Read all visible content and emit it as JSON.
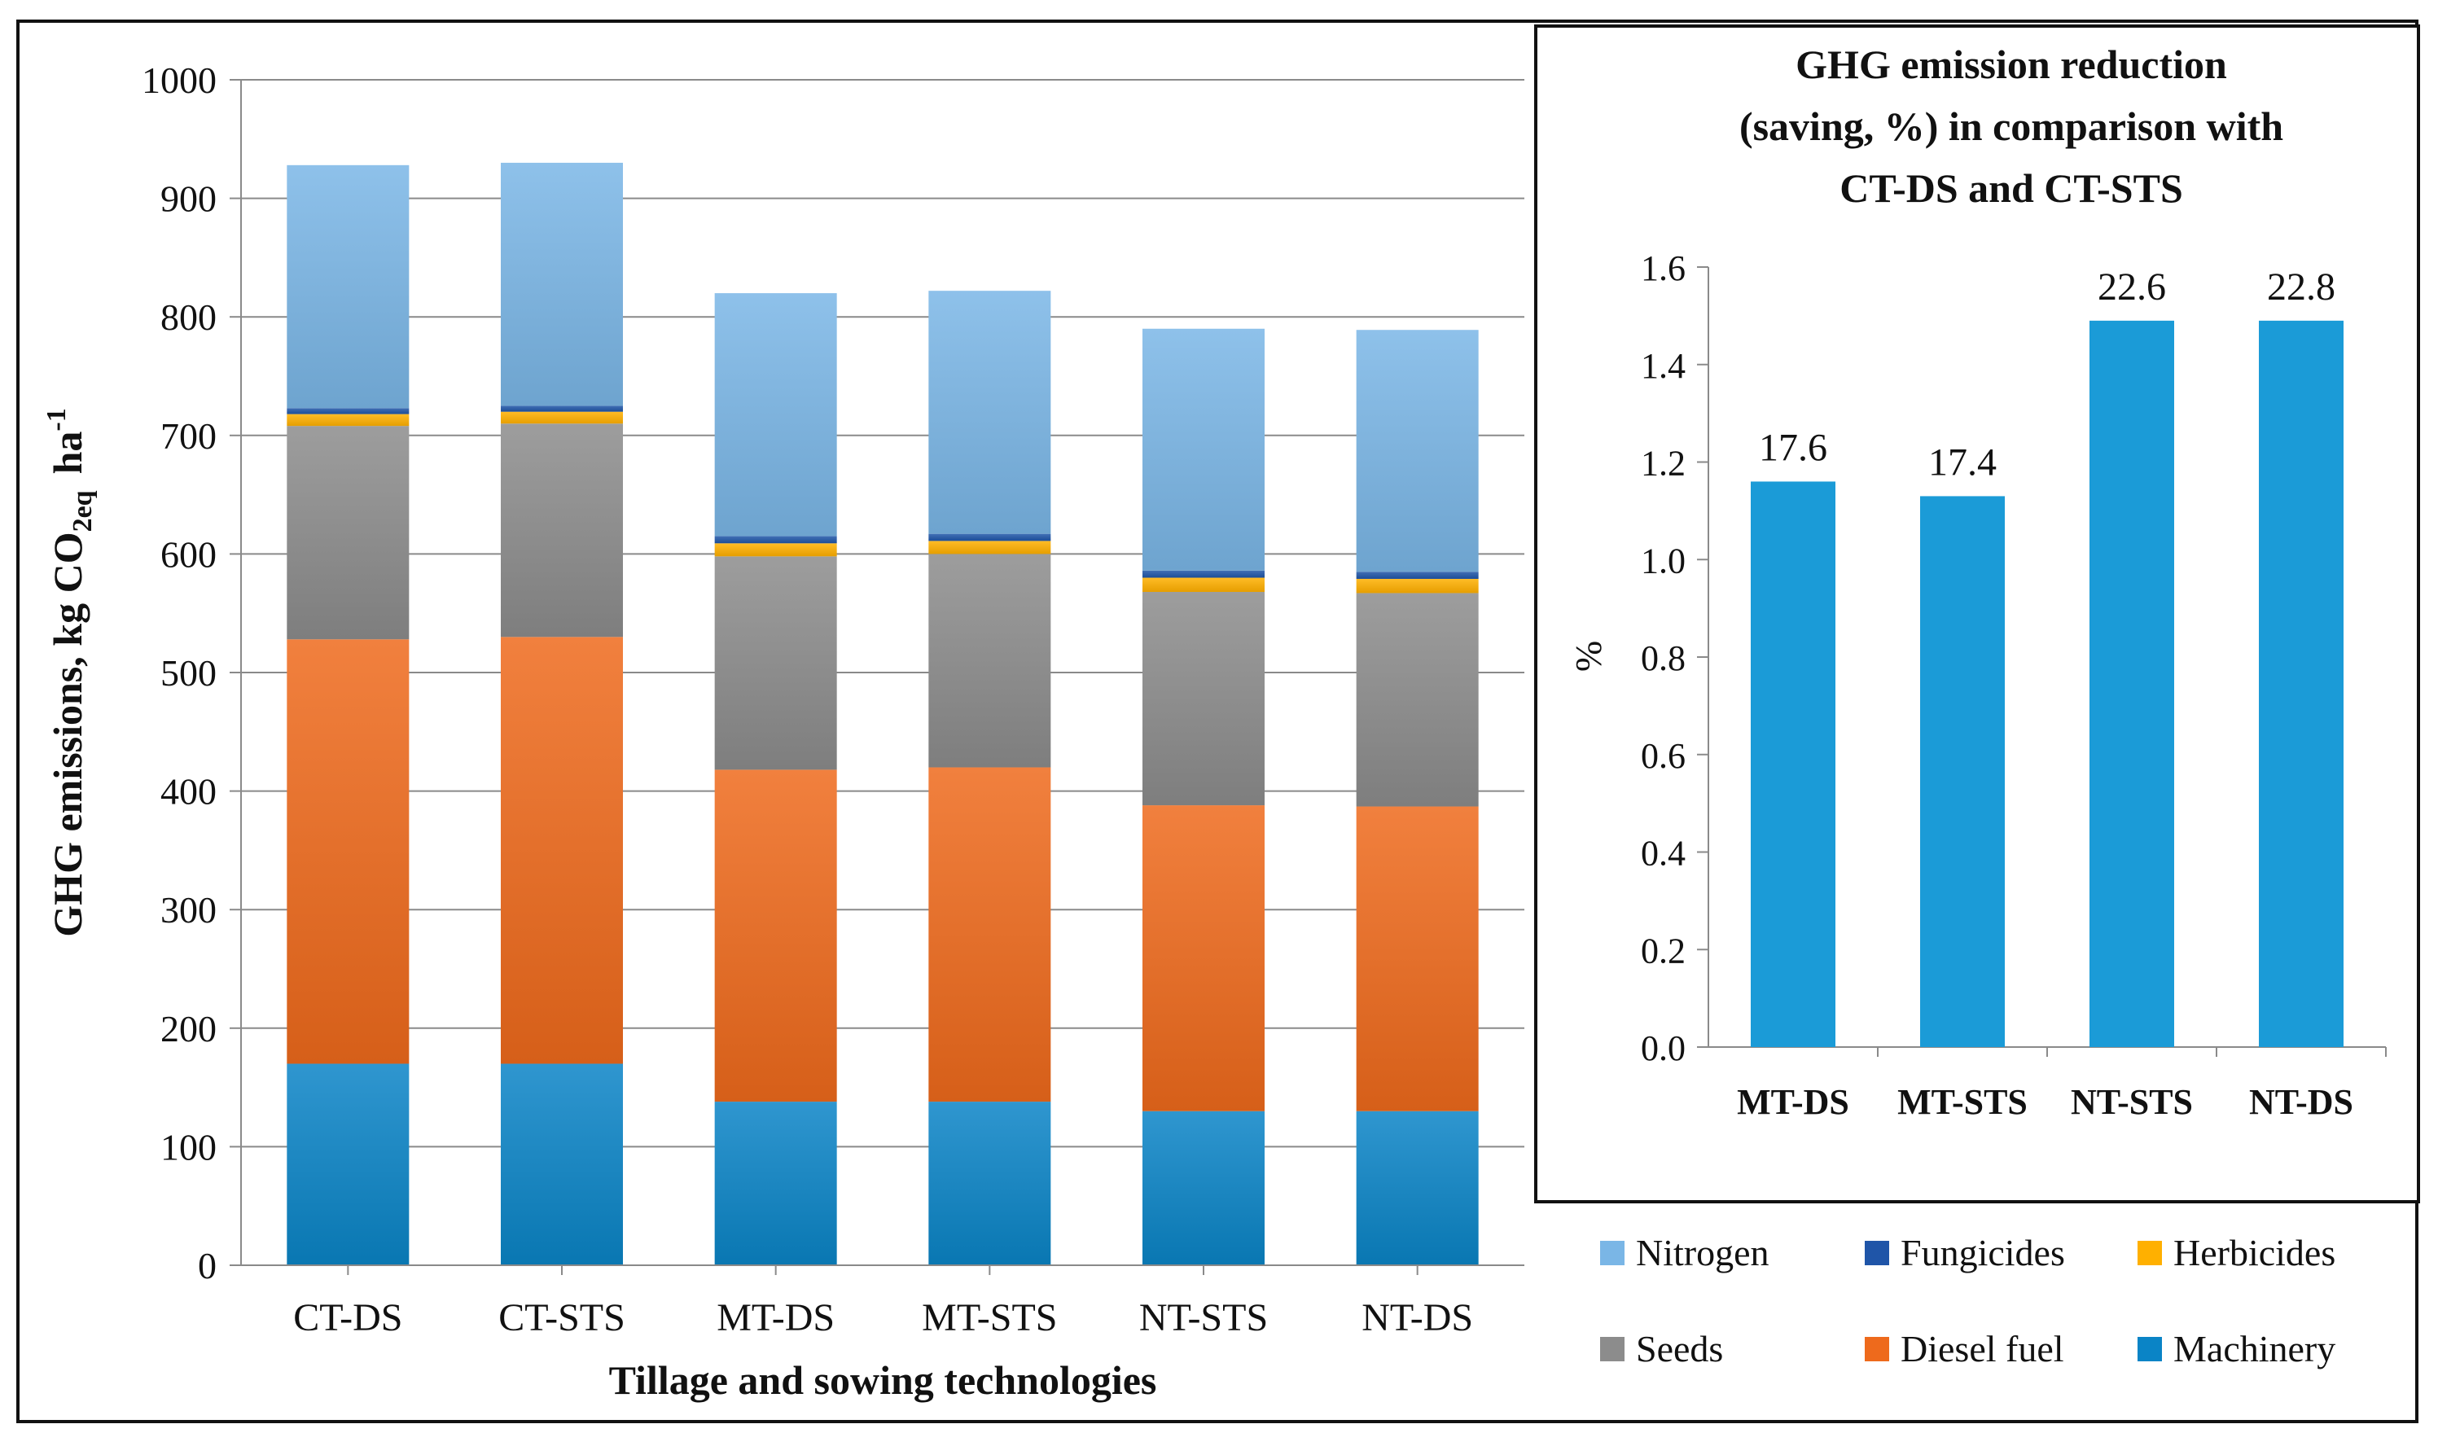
{
  "chart_data": [
    {
      "type": "bar",
      "stacked": true,
      "title": "",
      "xlabel": "Tillage and sowing technologies",
      "ylabel_parts": {
        "main": "GHG emissions, kg CO",
        "sub": "2eq",
        "unit": "ha",
        "sup": "-1"
      },
      "ylim": [
        0,
        1000
      ],
      "yticks": [
        "0",
        "100",
        "200",
        "300",
        "400",
        "500",
        "600",
        "700",
        "800",
        "900",
        "1000"
      ],
      "grid": true,
      "categories": [
        "CT-DS",
        "CT-STS",
        "MT-DS",
        "MT-STS",
        "NT-STS",
        "NT-DS"
      ],
      "series": [
        {
          "name": "Machinery",
          "color": "#0a84c6",
          "values": [
            170,
            170,
            138,
            138,
            130,
            130
          ]
        },
        {
          "name": "Diesel fuel",
          "color": "#ee6a1c",
          "values": [
            358,
            360,
            280,
            282,
            258,
            257
          ]
        },
        {
          "name": "Seeds",
          "color": "#8c8c8c",
          "values": [
            180,
            180,
            180,
            180,
            180,
            180
          ]
        },
        {
          "name": "Herbicides",
          "color": "#ffb000",
          "values": [
            10,
            10,
            11,
            11,
            12,
            12
          ]
        },
        {
          "name": "Fungicides",
          "color": "#1f55a8",
          "values": [
            5,
            5,
            6,
            6,
            6,
            6
          ]
        },
        {
          "name": "Nitrogen",
          "color": "#7ab6e6",
          "values": [
            205,
            205,
            205,
            205,
            204,
            204
          ]
        }
      ]
    },
    {
      "type": "bar",
      "title_lines": [
        "GHG emission reduction",
        "(saving, %) in comparison with",
        "CT-DS and CT-STS"
      ],
      "ylabel": "%",
      "ylim": [
        0,
        1.6
      ],
      "yticks": [
        "0.0",
        "0.2",
        "0.4",
        "0.6",
        "0.8",
        "1.0",
        "1.2",
        "1.4",
        "1.6"
      ],
      "categories": [
        "MT-DS",
        "MT-STS",
        "NT-STS",
        "NT-DS"
      ],
      "values": [
        1.16,
        1.13,
        1.49,
        1.49
      ],
      "data_labels": [
        "17.6",
        "17.4",
        "22.6",
        "22.8"
      ],
      "color": "#1b9bd7",
      "grid": false
    }
  ],
  "legend": {
    "row1": [
      {
        "name": "Nitrogen",
        "color": "#7ab6e6"
      },
      {
        "name": "Fungicides",
        "color": "#1f55a8"
      },
      {
        "name": "Herbicides",
        "color": "#ffb000"
      }
    ],
    "row2": [
      {
        "name": "Seeds",
        "color": "#8c8c8c"
      },
      {
        "name": "Diesel fuel",
        "color": "#ee6a1c"
      },
      {
        "name": "Machinery",
        "color": "#0a84c6"
      }
    ]
  }
}
